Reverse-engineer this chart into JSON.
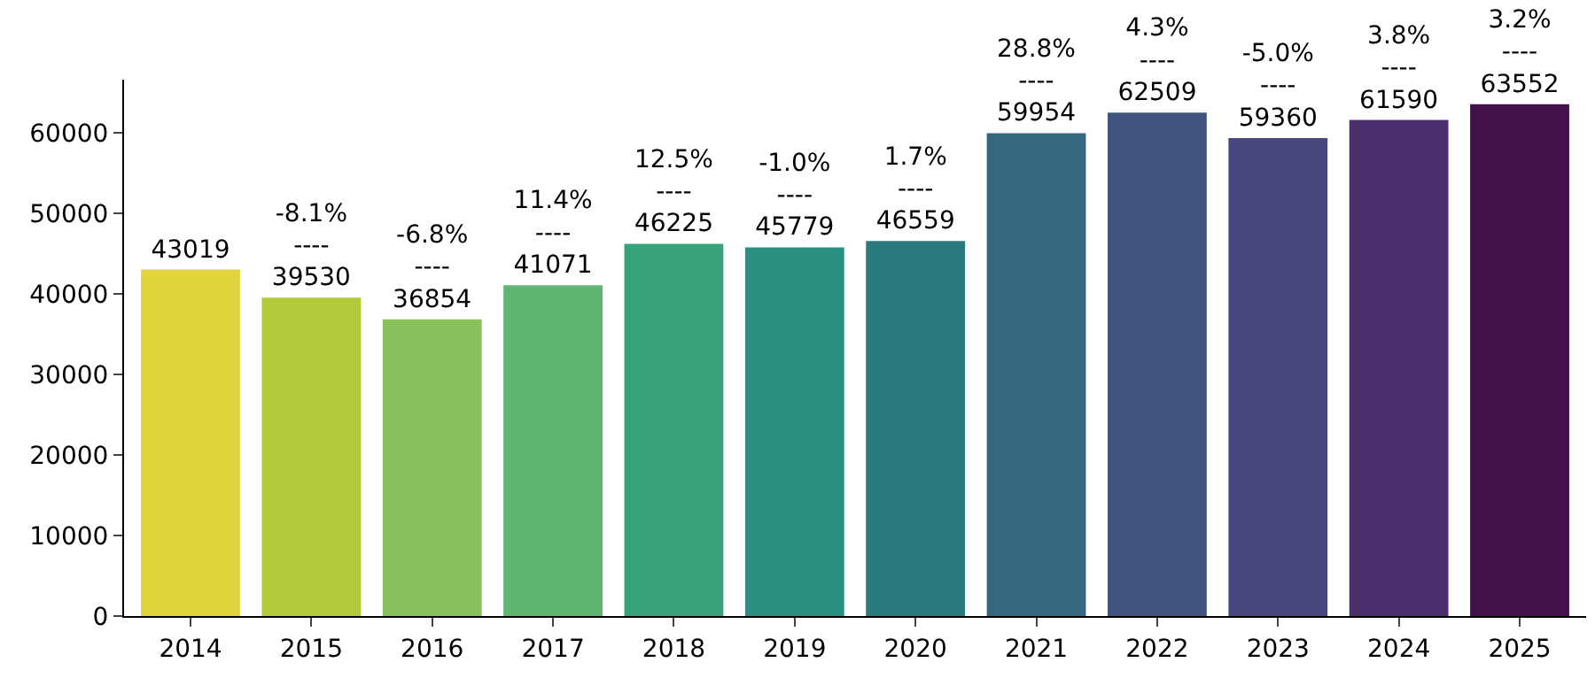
{
  "chart_data": {
    "type": "bar",
    "categories": [
      "2014",
      "2015",
      "2016",
      "2017",
      "2018",
      "2019",
      "2020",
      "2021",
      "2022",
      "2023",
      "2024",
      "2025"
    ],
    "values": [
      43019,
      39530,
      36854,
      41071,
      46225,
      45779,
      46559,
      59954,
      62509,
      59360,
      61590,
      63552
    ],
    "colors": [
      "#e2d43c",
      "#b2c93a",
      "#87c25c",
      "#5eb671",
      "#38a27a",
      "#2a8f7e",
      "#2a797e",
      "#36677f",
      "#405680",
      "#484880",
      "#4b2e6d",
      "#42104a"
    ],
    "value_labels": [
      "43019",
      "-8.1%\n----\n39530",
      "-6.8%\n----\n36854",
      "11.4%\n----\n41071",
      "12.5%\n----\n46225",
      "-1.0%\n----\n45779",
      "1.7%\n----\n46559",
      "28.8%\n----\n59954",
      "4.3%\n----\n62509",
      "-5.0%\n----\n59360",
      "3.8%\n----\n61590",
      "3.2%\n----\n63552"
    ],
    "ylim": [
      0,
      66600
    ],
    "yticks": [
      0,
      10000,
      20000,
      30000,
      40000,
      50000,
      60000
    ],
    "grid": false
  }
}
